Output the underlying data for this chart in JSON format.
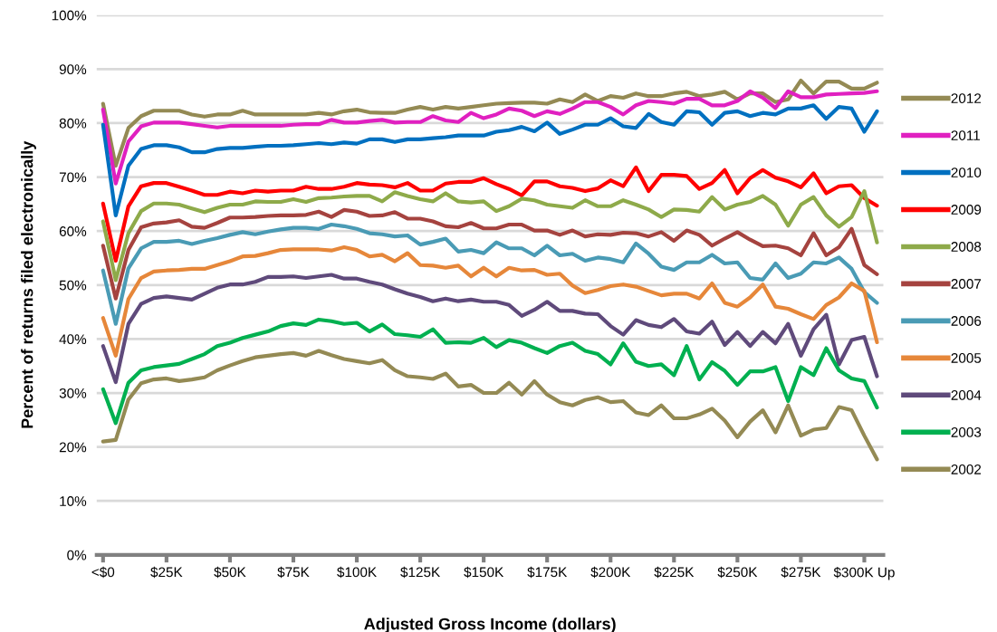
{
  "chart_data": {
    "type": "line",
    "xlabel": "Adjusted Gross Income (dollars)",
    "ylabel": "Percent of returns filed electronically",
    "categories": [
      "<$0",
      null,
      null,
      null,
      null,
      "$25K",
      null,
      null,
      null,
      null,
      "$50K",
      null,
      null,
      null,
      null,
      "$75K",
      null,
      null,
      null,
      null,
      "$100K",
      null,
      null,
      null,
      null,
      "$125K",
      null,
      null,
      null,
      null,
      "$150K",
      null,
      null,
      null,
      null,
      "$175K",
      null,
      null,
      null,
      null,
      "$200K",
      null,
      null,
      null,
      null,
      "$225K",
      null,
      null,
      null,
      null,
      "$250K",
      null,
      null,
      null,
      null,
      "$275K",
      null,
      null,
      null,
      null,
      "$300K Up",
      null
    ],
    "ylim": [
      0,
      100
    ],
    "yticks": [
      {
        "value": 0,
        "label": "0%"
      },
      {
        "value": 10,
        "label": "10%"
      },
      {
        "value": 20,
        "label": "20%"
      },
      {
        "value": 30,
        "label": "30%"
      },
      {
        "value": 40,
        "label": "40%"
      },
      {
        "value": 50,
        "label": "50%"
      },
      {
        "value": 60,
        "label": "60%"
      },
      {
        "value": 70,
        "label": "70%"
      },
      {
        "value": 80,
        "label": "80%"
      },
      {
        "value": 90,
        "label": "90%"
      },
      {
        "value": 100,
        "label": "100%"
      }
    ],
    "grid": "y",
    "legend": "right",
    "marker": "none",
    "line_style": "solid",
    "series": [
      {
        "name": "2012",
        "color": "#948a54",
        "values": [
          83.6,
          72.1,
          79.1,
          81.3,
          82.3,
          82.3,
          82.3,
          81.6,
          81.2,
          81.6,
          81.6,
          82.3,
          81.6,
          81.6,
          81.6,
          81.6,
          81.6,
          81.9,
          81.6,
          82.2,
          82.5,
          82.0,
          81.9,
          81.9,
          82.5,
          83.0,
          82.5,
          83.0,
          82.7,
          83.0,
          83.3,
          83.6,
          83.7,
          83.8,
          83.8,
          83.6,
          84.4,
          83.9,
          85.3,
          84.1,
          85.0,
          84.7,
          85.5,
          85.0,
          85.0,
          85.5,
          85.8,
          85.0,
          85.3,
          85.8,
          84.4,
          85.5,
          85.5,
          83.9,
          84.4,
          87.9,
          85.5,
          87.7,
          87.7,
          86.4,
          86.4,
          87.5
        ]
      },
      {
        "name": "2011",
        "color": "#e020c0",
        "values": [
          82.5,
          68.8,
          76.6,
          79.4,
          80.1,
          80.1,
          80.1,
          79.8,
          79.5,
          79.2,
          79.5,
          79.5,
          79.5,
          79.5,
          79.5,
          79.7,
          79.8,
          79.8,
          80.6,
          80.1,
          80.1,
          80.4,
          80.6,
          80.1,
          80.2,
          80.2,
          81.3,
          80.5,
          80.2,
          81.9,
          80.9,
          81.6,
          82.7,
          82.3,
          81.3,
          82.2,
          81.7,
          82.7,
          83.9,
          83.9,
          83.0,
          81.6,
          83.3,
          84.1,
          83.9,
          83.6,
          84.5,
          84.5,
          83.3,
          83.3,
          84.1,
          85.9,
          84.7,
          82.8,
          85.9,
          84.8,
          84.8,
          85.3,
          85.4,
          85.5,
          85.6,
          85.9
        ]
      },
      {
        "name": "2010",
        "color": "#0070c0",
        "values": [
          79.7,
          62.9,
          72.1,
          75.2,
          75.9,
          75.9,
          75.5,
          74.6,
          74.6,
          75.2,
          75.4,
          75.4,
          75.6,
          75.8,
          75.8,
          75.9,
          76.1,
          76.3,
          76.1,
          76.4,
          76.2,
          77.0,
          77.0,
          76.5,
          77.0,
          77.0,
          77.2,
          77.4,
          77.7,
          77.7,
          77.7,
          78.4,
          78.7,
          79.3,
          78.5,
          80.1,
          78.0,
          78.8,
          79.7,
          79.7,
          80.9,
          79.4,
          79.1,
          81.7,
          80.2,
          79.7,
          82.2,
          82.0,
          79.7,
          81.9,
          82.2,
          81.3,
          81.9,
          81.6,
          82.7,
          82.7,
          83.3,
          80.8,
          83.0,
          82.7,
          78.4,
          82.2
        ]
      },
      {
        "name": "2009",
        "color": "#ff0000",
        "values": [
          65.1,
          54.5,
          64.6,
          68.3,
          68.9,
          68.9,
          68.2,
          67.5,
          66.7,
          66.7,
          67.3,
          67.0,
          67.5,
          67.3,
          67.5,
          67.5,
          68.2,
          67.8,
          67.8,
          68.2,
          68.9,
          68.6,
          68.5,
          68.1,
          68.9,
          67.5,
          67.5,
          68.8,
          69.1,
          69.1,
          69.8,
          68.7,
          67.8,
          66.6,
          69.2,
          69.2,
          68.3,
          68.0,
          67.4,
          67.9,
          69.4,
          68.3,
          71.8,
          67.4,
          70.4,
          70.4,
          70.2,
          67.8,
          68.9,
          71.3,
          67.0,
          69.8,
          71.3,
          69.9,
          69.2,
          68.1,
          70.7,
          67.0,
          68.3,
          68.5,
          66.1,
          64.7
        ]
      },
      {
        "name": "2008",
        "color": "#8eaa4a",
        "values": [
          61.8,
          50.9,
          59.6,
          63.7,
          65.1,
          65.1,
          64.9,
          64.2,
          63.5,
          64.3,
          64.9,
          64.9,
          65.5,
          65.4,
          65.4,
          65.9,
          65.4,
          66.1,
          66.2,
          66.4,
          66.5,
          66.5,
          65.5,
          67.2,
          66.5,
          65.9,
          65.5,
          67.0,
          65.5,
          65.3,
          65.5,
          63.7,
          64.6,
          66.0,
          65.7,
          64.9,
          64.6,
          64.3,
          65.7,
          64.6,
          64.6,
          65.7,
          64.9,
          64.0,
          62.6,
          64.0,
          63.9,
          63.6,
          66.3,
          64.0,
          64.9,
          65.4,
          66.5,
          64.9,
          61.0,
          64.9,
          66.3,
          62.9,
          60.8,
          62.6,
          67.4,
          57.9
        ]
      },
      {
        "name": "2007",
        "color": "#a5433f",
        "values": [
          57.3,
          47.5,
          56.5,
          60.7,
          61.4,
          61.6,
          62.0,
          60.8,
          60.6,
          61.5,
          62.5,
          62.5,
          62.6,
          62.8,
          62.9,
          62.9,
          63.0,
          63.6,
          62.6,
          63.9,
          63.6,
          62.8,
          62.9,
          63.5,
          62.3,
          62.3,
          61.8,
          60.9,
          60.7,
          61.5,
          60.5,
          60.5,
          61.2,
          61.2,
          60.1,
          60.1,
          59.3,
          60.1,
          59.0,
          59.4,
          59.3,
          59.7,
          59.6,
          59.0,
          59.8,
          58.2,
          60.1,
          59.3,
          57.3,
          58.6,
          59.8,
          58.4,
          57.2,
          57.3,
          56.8,
          55.5,
          59.6,
          55.5,
          57.0,
          60.4,
          53.7,
          52.0
        ]
      },
      {
        "name": "2006",
        "color": "#4a9bb5",
        "values": [
          52.7,
          42.8,
          53.1,
          56.8,
          58.0,
          58.0,
          58.2,
          57.6,
          58.2,
          58.7,
          59.3,
          59.8,
          59.4,
          59.9,
          60.3,
          60.6,
          60.6,
          60.4,
          61.2,
          60.9,
          60.4,
          59.6,
          59.4,
          59.0,
          59.2,
          57.5,
          58.0,
          58.6,
          56.2,
          56.5,
          55.9,
          57.9,
          56.8,
          56.8,
          55.5,
          57.3,
          55.5,
          55.8,
          54.5,
          55.1,
          54.8,
          54.2,
          57.7,
          55.8,
          53.4,
          52.8,
          54.2,
          54.2,
          55.6,
          54.0,
          54.2,
          51.3,
          51.0,
          54.0,
          51.3,
          52.1,
          54.2,
          54.0,
          55.1,
          53.0,
          48.7,
          46.7
        ]
      },
      {
        "name": "2005",
        "color": "#e6873a",
        "values": [
          43.9,
          36.9,
          47.4,
          51.3,
          52.5,
          52.7,
          52.8,
          53.0,
          53.0,
          53.7,
          54.4,
          55.3,
          55.4,
          55.9,
          56.5,
          56.6,
          56.6,
          56.6,
          56.4,
          57.0,
          56.5,
          55.3,
          55.6,
          54.4,
          55.9,
          53.7,
          53.6,
          53.2,
          53.6,
          51.6,
          53.2,
          51.6,
          53.2,
          52.7,
          52.8,
          51.9,
          52.1,
          49.9,
          48.5,
          49.1,
          49.8,
          50.1,
          49.7,
          48.9,
          48.1,
          48.4,
          48.4,
          47.5,
          50.3,
          46.7,
          46.0,
          47.7,
          50.1,
          46.0,
          45.6,
          44.6,
          43.7,
          46.3,
          47.7,
          50.3,
          48.9,
          39.4
        ]
      },
      {
        "name": "2004",
        "color": "#5f4a7b",
        "values": [
          38.7,
          32.0,
          42.8,
          46.5,
          47.6,
          47.9,
          47.6,
          47.3,
          48.4,
          49.5,
          50.1,
          50.1,
          50.6,
          51.5,
          51.5,
          51.6,
          51.3,
          51.6,
          51.9,
          51.2,
          51.2,
          50.6,
          50.1,
          49.2,
          48.4,
          47.8,
          47.0,
          47.5,
          47.0,
          47.3,
          46.9,
          46.9,
          46.3,
          44.3,
          45.4,
          46.9,
          45.2,
          45.2,
          44.7,
          44.6,
          42.4,
          40.8,
          43.5,
          42.6,
          42.2,
          43.7,
          41.4,
          41.0,
          43.2,
          38.9,
          41.3,
          38.7,
          41.3,
          39.2,
          42.8,
          36.9,
          41.8,
          44.5,
          35.3,
          39.8,
          40.4,
          33.1
        ]
      },
      {
        "name": "2003",
        "color": "#00b050",
        "values": [
          30.7,
          24.4,
          31.9,
          34.2,
          34.8,
          35.1,
          35.4,
          36.3,
          37.2,
          38.7,
          39.3,
          40.2,
          40.8,
          41.4,
          42.4,
          42.9,
          42.6,
          43.6,
          43.3,
          42.8,
          43.0,
          41.4,
          42.7,
          40.9,
          40.7,
          40.4,
          41.8,
          39.3,
          39.4,
          39.3,
          40.2,
          38.5,
          39.8,
          39.3,
          38.3,
          37.4,
          38.7,
          39.3,
          37.8,
          37.2,
          35.3,
          39.2,
          35.8,
          35.0,
          35.3,
          33.3,
          38.7,
          32.5,
          35.7,
          34.1,
          31.5,
          34.0,
          34.0,
          34.8,
          28.5,
          34.8,
          33.3,
          38.3,
          34.2,
          32.7,
          32.2,
          27.3
        ]
      },
      {
        "name": "2002",
        "color": "#948a54",
        "values": [
          21.0,
          21.3,
          28.8,
          31.8,
          32.5,
          32.7,
          32.2,
          32.5,
          32.9,
          34.2,
          35.1,
          35.9,
          36.6,
          36.9,
          37.2,
          37.4,
          36.9,
          37.8,
          37.0,
          36.3,
          35.9,
          35.5,
          36.1,
          34.2,
          33.1,
          32.9,
          32.6,
          33.6,
          31.2,
          31.5,
          30.0,
          30.0,
          31.9,
          29.7,
          32.2,
          29.7,
          28.3,
          27.7,
          28.7,
          29.2,
          28.3,
          28.5,
          26.4,
          25.9,
          27.7,
          25.3,
          25.3,
          26.0,
          27.1,
          24.9,
          21.8,
          24.7,
          26.8,
          22.7,
          27.7,
          22.1,
          23.2,
          23.5,
          27.4,
          26.8,
          22.1,
          17.7
        ]
      }
    ]
  }
}
